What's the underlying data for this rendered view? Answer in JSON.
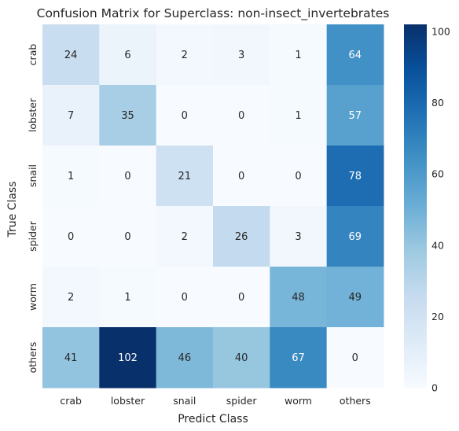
{
  "chart_data": {
    "type": "heatmap",
    "title": "Confusion Matrix for Superclass: non-insect_invertebrates",
    "xlabel": "Predict Class",
    "ylabel": "True Class",
    "x_categories": [
      "crab",
      "lobster",
      "snail",
      "spider",
      "worm",
      "others"
    ],
    "y_categories": [
      "crab",
      "lobster",
      "snail",
      "spider",
      "worm",
      "others"
    ],
    "values": [
      [
        24,
        6,
        2,
        3,
        1,
        64
      ],
      [
        7,
        35,
        0,
        0,
        1,
        57
      ],
      [
        1,
        0,
        21,
        0,
        0,
        78
      ],
      [
        0,
        0,
        2,
        26,
        3,
        69
      ],
      [
        2,
        1,
        0,
        0,
        48,
        49
      ],
      [
        41,
        102,
        46,
        40,
        67,
        0
      ]
    ],
    "colormap": "Blues",
    "color_range": [
      0,
      102
    ],
    "colorbar_ticks": [
      0,
      20,
      40,
      60,
      80,
      100
    ]
  }
}
